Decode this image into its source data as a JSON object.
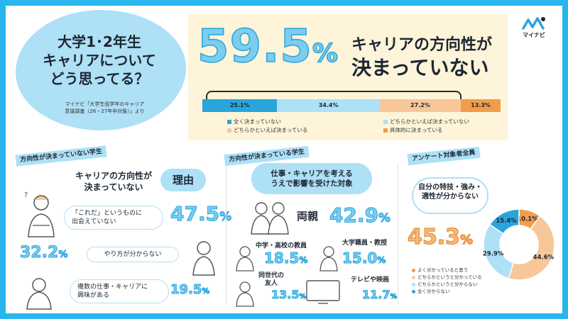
{
  "logo": {
    "text": "マイナビ"
  },
  "question": {
    "title_l1": "大学1･2年生",
    "title_l2": "キャリアについて",
    "title_l3": "どう思ってる？",
    "source_l1": "マイナビ「大学生低学年のキャリア",
    "source_l2": "意識調査（26・27年卒対象）」より"
  },
  "headline": {
    "value": "59.5",
    "unit": "%",
    "text_l1": "キャリアの方向性が",
    "text_l2": "決まっていない"
  },
  "stacked_bar": {
    "segments": [
      {
        "label": "25.1%",
        "value": 25.1,
        "color": "#29a5dc"
      },
      {
        "label": "34.4%",
        "value": 34.4,
        "color": "#aee0f6"
      },
      {
        "label": "27.2%",
        "value": 27.2,
        "color": "#f7c79a"
      },
      {
        "label": "13.3%",
        "value": 13.3,
        "color": "#f29d4b"
      }
    ],
    "legend": [
      "全く決まっていない",
      "どちらかといえば決まっていない",
      "どちらかといえば決まっている",
      "具体的に決まっている"
    ]
  },
  "section_left": {
    "tag": "方向性が決まっていない学生",
    "title_l1": "キャリアの方向性が",
    "title_l2": "決まっていない",
    "reason_badge": "理由",
    "reasons": [
      {
        "text_l1": "「これだ」というものに",
        "text_l2": "出会えていない",
        "pct": "47.5",
        "unit": "%"
      },
      {
        "text_l1": "やり方が分からない",
        "text_l2": "",
        "pct": "32.2",
        "unit": "%"
      },
      {
        "text_l1": "複数の仕事・キャリアに",
        "text_l2": "興味がある",
        "pct": "19.5",
        "unit": "%"
      }
    ]
  },
  "section_mid": {
    "tag": "方向性が決まっている学生",
    "bubble_l1": "仕事・キャリアを考える",
    "bubble_l2": "うえで影響を受けた対象",
    "items": [
      {
        "label": "両親",
        "pct": "42.9",
        "unit": "%"
      },
      {
        "label": "中学・高校の教員",
        "pct": "18.5",
        "unit": "%"
      },
      {
        "label": "大学職員・教授",
        "pct": "15.0",
        "unit": "%"
      },
      {
        "label_l1": "同世代の",
        "label_l2": "友人",
        "pct": "13.5",
        "unit": "%"
      },
      {
        "label": "テレビや映画",
        "pct": "11.7",
        "unit": "%"
      }
    ]
  },
  "section_right": {
    "tag": "アンケート対象者全員",
    "bubble_l1": "自分の特技・強み・",
    "bubble_l2": "適性が分からない",
    "value": "45.3",
    "unit": "%",
    "donut": [
      {
        "label": "10.1%",
        "value": 10.1,
        "color": "#f29d4b"
      },
      {
        "label": "44.6%",
        "value": 44.6,
        "color": "#f7c79a"
      },
      {
        "label": "29.9%",
        "value": 29.9,
        "color": "#aee0f6"
      },
      {
        "label": "15.4%",
        "value": 15.4,
        "color": "#29a5dc"
      }
    ],
    "legend": [
      "よく分かっていると思う",
      "どちらかというと分かっている",
      "どちらかというと分からない",
      "全く分からない"
    ]
  }
}
